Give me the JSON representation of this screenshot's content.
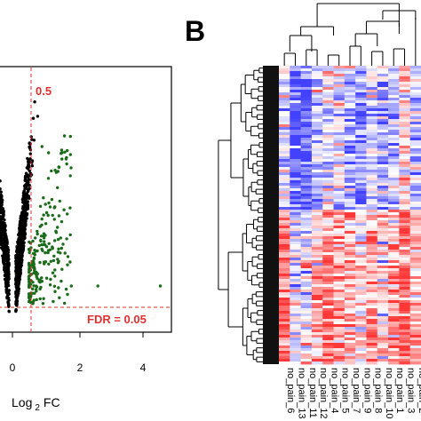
{
  "chart_data": [
    {
      "type": "scatter",
      "panel": "A",
      "xlabel": "Log 2 FC",
      "xlabel_parts": {
        "pre": "Log",
        "sub": "2",
        "post": "FC"
      },
      "xlim": [
        -0.9,
        4.7
      ],
      "x_ticks": [
        "0",
        "2",
        "4"
      ],
      "x_tick_values": [
        0,
        2,
        4
      ],
      "grid": false,
      "thresholds": {
        "log2fc": {
          "value": 0.5,
          "label": "0.5"
        },
        "fdr": {
          "value": 0.05,
          "label": "FDR = 0.05"
        }
      },
      "series": [
        {
          "role": "not-significant",
          "color": "#000000"
        },
        {
          "role": "significant",
          "color": "#1a6b1a"
        }
      ]
    },
    {
      "type": "heatmap",
      "panel": "B",
      "column_labels": [
        "no_pain_6",
        "no_pain_13",
        "no_pain_11",
        "no_pain_12",
        "no_pain_4",
        "no_pain_5",
        "no_pain_7",
        "no_pain_9",
        "no_pain_8",
        "no_pain_10",
        "no_pain_1",
        "no_pain_3",
        "no_pain_2"
      ],
      "low_color": "#3d3dc8",
      "high_color": "#e03030",
      "dendrograms": [
        "rows",
        "columns"
      ]
    }
  ],
  "panel_labels": {
    "b": "B"
  },
  "colors": {
    "threshold": "#e03030",
    "axis": "#000000"
  }
}
